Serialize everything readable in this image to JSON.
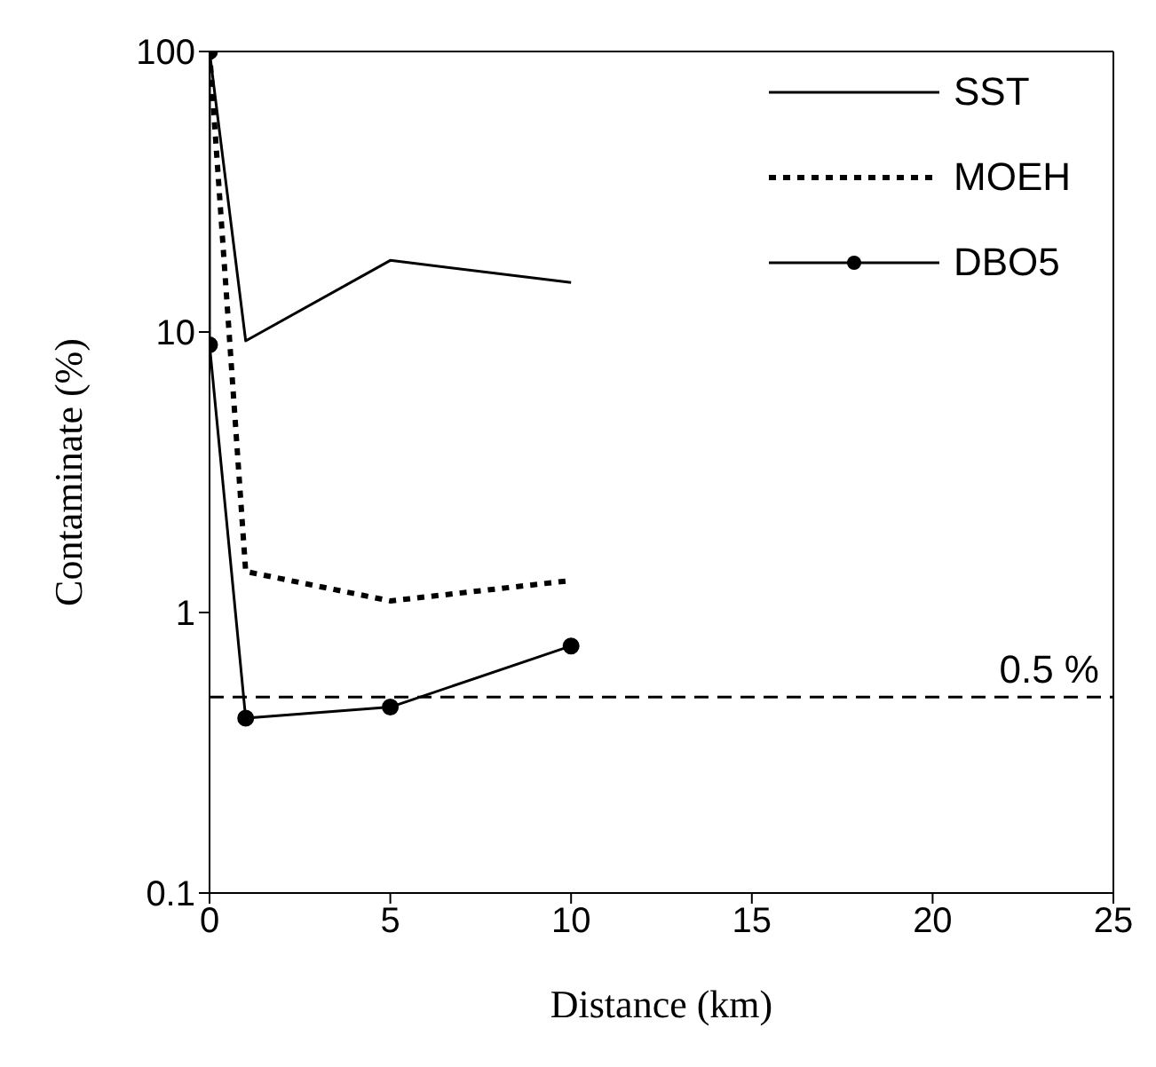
{
  "chart_data": {
    "type": "line",
    "xlabel": "Distance (km)",
    "ylabel": "Contaminate (%)",
    "log": "y",
    "xlim": [
      0,
      25
    ],
    "xticks": [
      0,
      5,
      10,
      15,
      20,
      25
    ],
    "ylim": [
      0.1,
      100
    ],
    "yticks": [
      0.1,
      1,
      10,
      100
    ],
    "grid": false,
    "legend": "top right",
    "series": [
      {
        "name": "SST",
        "color": "#000000",
        "line_style": "solid",
        "marker": "none",
        "x": [
          0,
          1,
          5,
          10
        ],
        "values": [
          100,
          9.3,
          18,
          15
        ]
      },
      {
        "name": "MOEH",
        "color": "#000000",
        "line_style": "dotted",
        "marker": "none",
        "x": [
          0,
          1,
          5,
          10
        ],
        "values": [
          100,
          1.4,
          1.1,
          1.3
        ]
      },
      {
        "name": "DBO5",
        "color": "#000000",
        "line_style": "solid",
        "marker": "circle",
        "x": [
          0,
          0,
          1,
          5,
          10
        ],
        "values": [
          100,
          9,
          0.42,
          0.46,
          0.76
        ]
      }
    ],
    "ref_lines": [
      {
        "axis": "y",
        "value": 0.5,
        "label": "0.5 %",
        "color": "#000000",
        "line_style": "dashed"
      }
    ]
  }
}
